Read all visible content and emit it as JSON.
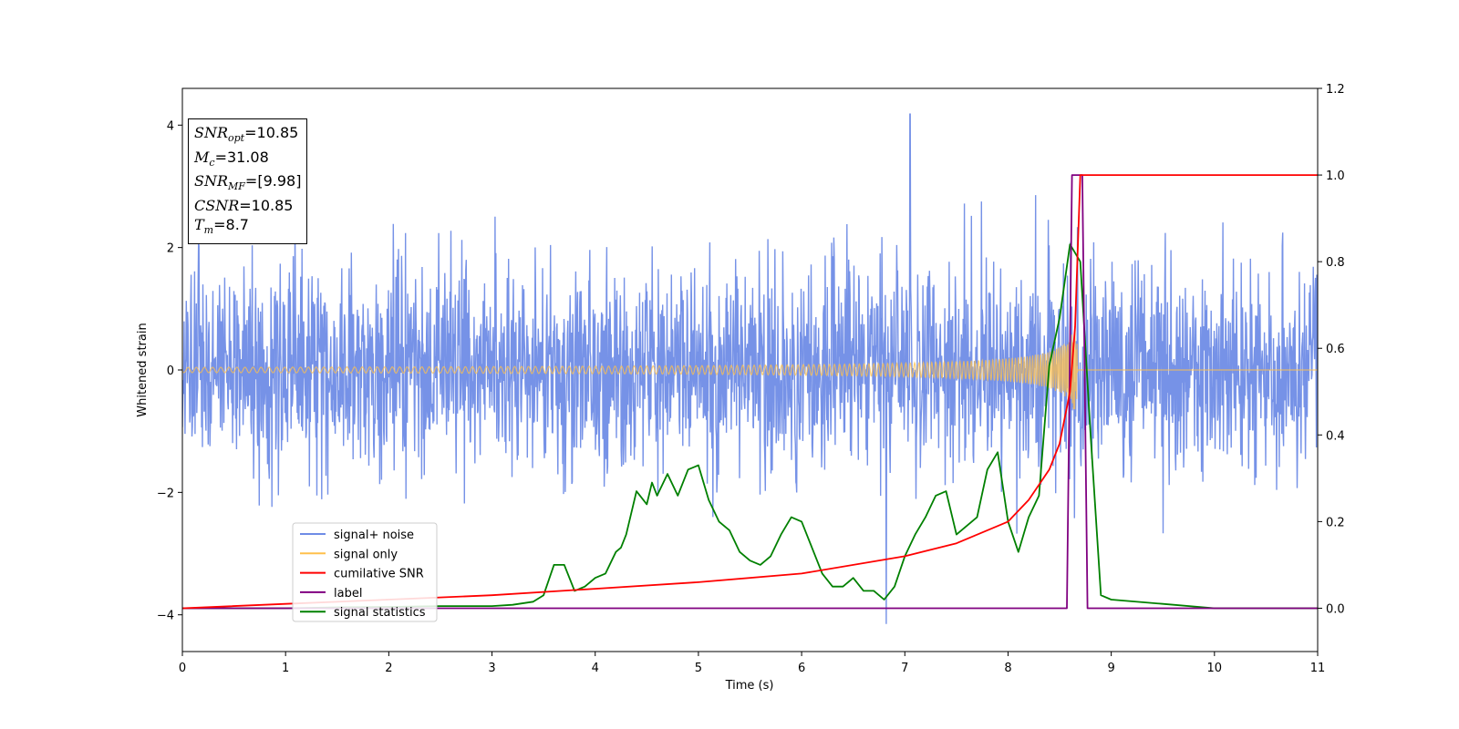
{
  "annotations": {
    "snr_opt": {
      "sym": "SNR",
      "sub": "opt",
      "value": "=10.85"
    },
    "mc": {
      "sym": "M",
      "sub": "c",
      "value": "=31.08"
    },
    "snr_mf": {
      "sym": "SNR",
      "sub": "MF",
      "value": "=[9.98]"
    },
    "csnr": {
      "sym": "CSNR",
      "sub": "",
      "value": "=10.85"
    },
    "tm": {
      "sym": "T",
      "sub": "m",
      "value": "=8.7"
    }
  },
  "chart_data": {
    "type": "line",
    "xlabel": "Time (s)",
    "ylabel": "Whitened strain",
    "xlim": [
      0,
      11
    ],
    "ylim": [
      -4.6,
      4.6
    ],
    "y2lim": [
      -0.1,
      1.2
    ],
    "xticks": [
      "0",
      "1",
      "2",
      "3",
      "4",
      "5",
      "6",
      "7",
      "8",
      "9",
      "10",
      "11"
    ],
    "yticks": [
      "4",
      "2",
      "0",
      "−2",
      "−4"
    ],
    "y2ticks": [
      "1.2",
      "1.0",
      "0.8",
      "0.6",
      "0.4",
      "0.2",
      "0.0"
    ],
    "grid": false,
    "legend_position": "lower-left",
    "series": [
      {
        "name": "signal+ noise",
        "axis": "left",
        "color": "#6f8ce6",
        "noise_rms": 0.85,
        "max_value": 4.18,
        "min_value": -4.15
      },
      {
        "name": "signal only",
        "axis": "left",
        "color": "#ffc04c",
        "chirp_peak_time": 8.68,
        "peak_amplitude": 0.95
      },
      {
        "name": "cumilative SNR",
        "axis": "right",
        "color": "#ff0000",
        "x": [
          0,
          1,
          2,
          3,
          4,
          5,
          6,
          7,
          7.5,
          8,
          8.2,
          8.4,
          8.5,
          8.6,
          8.65,
          8.7,
          8.75,
          11
        ],
        "y": [
          0.0,
          0.01,
          0.02,
          0.03,
          0.045,
          0.06,
          0.08,
          0.12,
          0.15,
          0.2,
          0.25,
          0.32,
          0.38,
          0.5,
          0.65,
          1.0,
          1.0,
          1.0
        ]
      },
      {
        "name": "label",
        "axis": "right",
        "color": "#800080",
        "x": [
          0,
          8.57,
          8.62,
          8.72,
          8.77,
          11
        ],
        "y": [
          0,
          0,
          1,
          1,
          0,
          0
        ]
      },
      {
        "name": "signal statistics",
        "axis": "right",
        "color": "#008000",
        "x": [
          0,
          0.5,
          1,
          1.5,
          2,
          2.5,
          3,
          3.2,
          3.4,
          3.5,
          3.6,
          3.7,
          3.8,
          3.9,
          4.0,
          4.1,
          4.2,
          4.25,
          4.3,
          4.4,
          4.5,
          4.55,
          4.6,
          4.7,
          4.8,
          4.9,
          5.0,
          5.1,
          5.2,
          5.3,
          5.4,
          5.5,
          5.6,
          5.7,
          5.8,
          5.9,
          6.0,
          6.1,
          6.2,
          6.3,
          6.4,
          6.5,
          6.6,
          6.7,
          6.8,
          6.9,
          7.0,
          7.1,
          7.2,
          7.3,
          7.4,
          7.5,
          7.6,
          7.7,
          7.8,
          7.9,
          8.0,
          8.1,
          8.2,
          8.3,
          8.4,
          8.5,
          8.6,
          8.7,
          8.8,
          8.9,
          9.0,
          9.5,
          10.0,
          11.0
        ],
        "y": [
          0.0,
          0.0,
          0.0,
          0.002,
          0.003,
          0.005,
          0.005,
          0.008,
          0.015,
          0.03,
          0.1,
          0.1,
          0.04,
          0.05,
          0.07,
          0.08,
          0.13,
          0.14,
          0.17,
          0.27,
          0.24,
          0.29,
          0.26,
          0.31,
          0.26,
          0.32,
          0.33,
          0.25,
          0.2,
          0.18,
          0.13,
          0.11,
          0.1,
          0.12,
          0.17,
          0.21,
          0.2,
          0.14,
          0.08,
          0.05,
          0.05,
          0.07,
          0.04,
          0.04,
          0.02,
          0.05,
          0.12,
          0.17,
          0.21,
          0.26,
          0.27,
          0.17,
          0.19,
          0.21,
          0.32,
          0.36,
          0.2,
          0.13,
          0.21,
          0.26,
          0.56,
          0.67,
          0.84,
          0.8,
          0.4,
          0.03,
          0.02,
          0.01,
          0.0,
          0.0
        ]
      }
    ]
  }
}
